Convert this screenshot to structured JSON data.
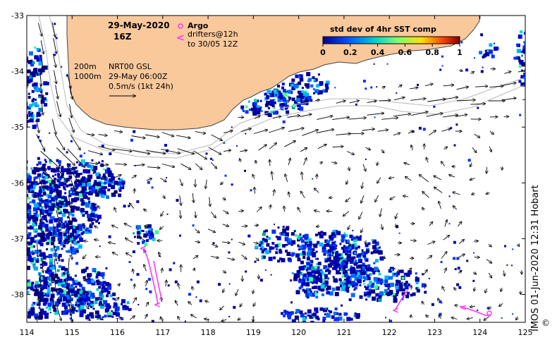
{
  "map": {
    "date": "29-May-2020",
    "time": "16Z",
    "argo_label": "Argo",
    "drifters_line1": "drifters@12h",
    "drifters_line2": "to 30/05 12Z",
    "isobath_200": "200m",
    "isobath_1000": "1000m",
    "model_name": "NRT00 GSL",
    "model_time": "29-May 06:00Z",
    "scale_label": "0.5m/s (1kt 24h)",
    "colorbar_title": "std dev of 4hr SST comp",
    "colorbar_ticks": [
      "0",
      "0.2",
      "0.4",
      "0.6",
      "0.8",
      "1"
    ],
    "credit": "IMOS 01-Jun-2020 12:31 Hobart",
    "copyright_symbol": "©",
    "colors": {
      "land": "#f9c89b",
      "coast": "#444444",
      "isobath": "#b8b8b8",
      "drifter": "#ff33ff",
      "arrow": "#000000"
    },
    "x_ticks": [
      114,
      115,
      116,
      117,
      118,
      119,
      120,
      121,
      122,
      123,
      124,
      125
    ],
    "y_ticks": [
      -33,
      -34,
      -35,
      -36,
      -37,
      -38
    ],
    "x_tick_labels": [
      "114",
      "115",
      "116",
      "117",
      "118",
      "119",
      "120",
      "121",
      "122",
      "123",
      "124",
      "125"
    ],
    "y_tick_labels": [
      "-33",
      "-34",
      "-35",
      "-36",
      "-37",
      "-38"
    ],
    "lon_range": [
      114,
      125
    ],
    "lat_range": [
      -38.5,
      -33
    ]
  }
}
